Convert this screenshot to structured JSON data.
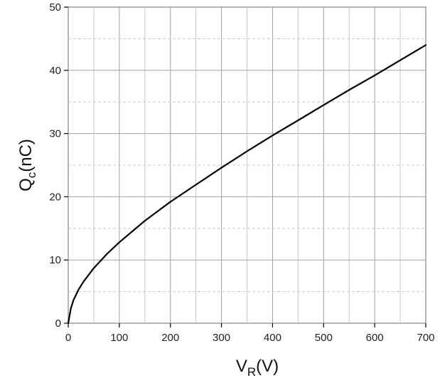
{
  "chart_data": {
    "type": "line",
    "xlabel_main": "V",
    "xlabel_sub": "R",
    "xlabel_unit": "(V)",
    "ylabel_main": "Q",
    "ylabel_sub": "c",
    "ylabel_unit": "(nC)",
    "xlim": [
      0,
      700
    ],
    "ylim": [
      0,
      50
    ],
    "x_ticks": [
      0,
      100,
      200,
      300,
      400,
      500,
      600,
      700
    ],
    "y_ticks": [
      0,
      10,
      20,
      30,
      40,
      50
    ],
    "x_tick_labels": [
      "0",
      "100",
      "200",
      "300",
      "400",
      "500",
      "600",
      "700"
    ],
    "y_tick_labels": [
      "0",
      "10",
      "20",
      "30",
      "40",
      "50"
    ],
    "grid": true,
    "series": [
      {
        "x": [
          0,
          5,
          10,
          20,
          30,
          50,
          75,
          100,
          150,
          200,
          250,
          300,
          350,
          400,
          450,
          500,
          550,
          600,
          650,
          700
        ],
        "y": [
          0,
          2.3,
          3.6,
          5.3,
          6.6,
          8.7,
          10.9,
          12.8,
          16.2,
          19.2,
          21.9,
          24.6,
          27.2,
          29.7,
          32.1,
          34.5,
          36.9,
          39.2,
          41.6,
          44.0
        ],
        "color": "#000000"
      }
    ]
  }
}
